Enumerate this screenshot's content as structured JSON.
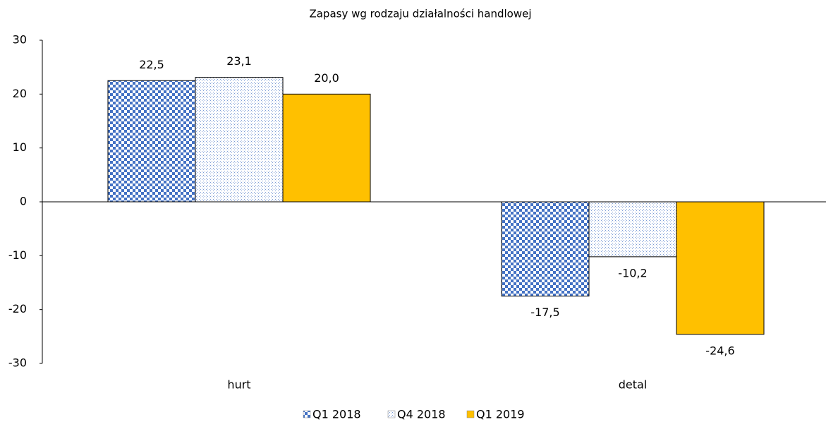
{
  "chart_data": {
    "type": "bar",
    "title": "Zapasy wg rodzaju działalności handlowej",
    "categories": [
      "hurt",
      "detal"
    ],
    "series": [
      {
        "name": "Q1 2018",
        "color": "#4472c4",
        "pattern": "checker",
        "values": [
          22.5,
          -17.5
        ],
        "value_labels": [
          "22,5",
          "-17,5"
        ]
      },
      {
        "name": "Q4 2018",
        "color": "#4472c4",
        "pattern": "dots",
        "values": [
          23.1,
          -10.2
        ],
        "value_labels": [
          "23,1",
          "-10,2"
        ]
      },
      {
        "name": "Q1 2019",
        "color": "#ffc000",
        "pattern": "solid",
        "values": [
          20.0,
          -24.6
        ],
        "value_labels": [
          "20,0",
          "-24,6"
        ]
      }
    ],
    "ylim": [
      -30,
      30
    ],
    "yticks": [
      -30,
      -20,
      -10,
      0,
      10,
      20,
      30
    ],
    "grid": false,
    "legend": "bottom"
  }
}
